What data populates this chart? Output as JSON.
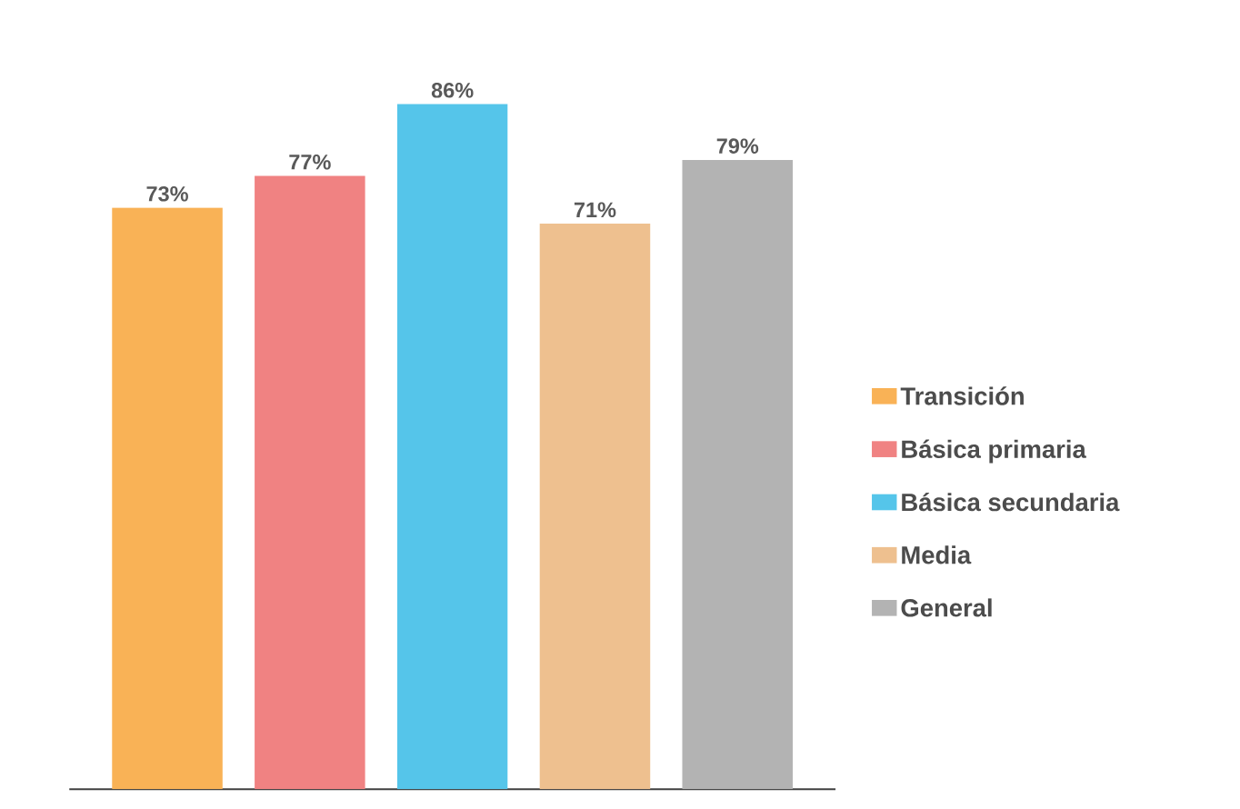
{
  "chart_data": {
    "type": "bar",
    "categories": [
      null
    ],
    "legend": "right",
    "series": [
      {
        "name": "Transición",
        "color": "#f9b256",
        "values": [
          73
        ],
        "value_labels": [
          "73%"
        ]
      },
      {
        "name": "Básica primaria",
        "color": "#f08282",
        "values": [
          77
        ],
        "value_labels": [
          "77%"
        ]
      },
      {
        "name": "Básica secundaria",
        "color": "#55c5ea",
        "values": [
          86
        ],
        "value_labels": [
          "86%"
        ]
      },
      {
        "name": "Media",
        "color": "#eec08f",
        "values": [
          71
        ],
        "value_labels": [
          "71%"
        ]
      },
      {
        "name": "General",
        "color": "#b3b3b3",
        "values": [
          79
        ],
        "value_labels": [
          "79%"
        ]
      }
    ]
  }
}
